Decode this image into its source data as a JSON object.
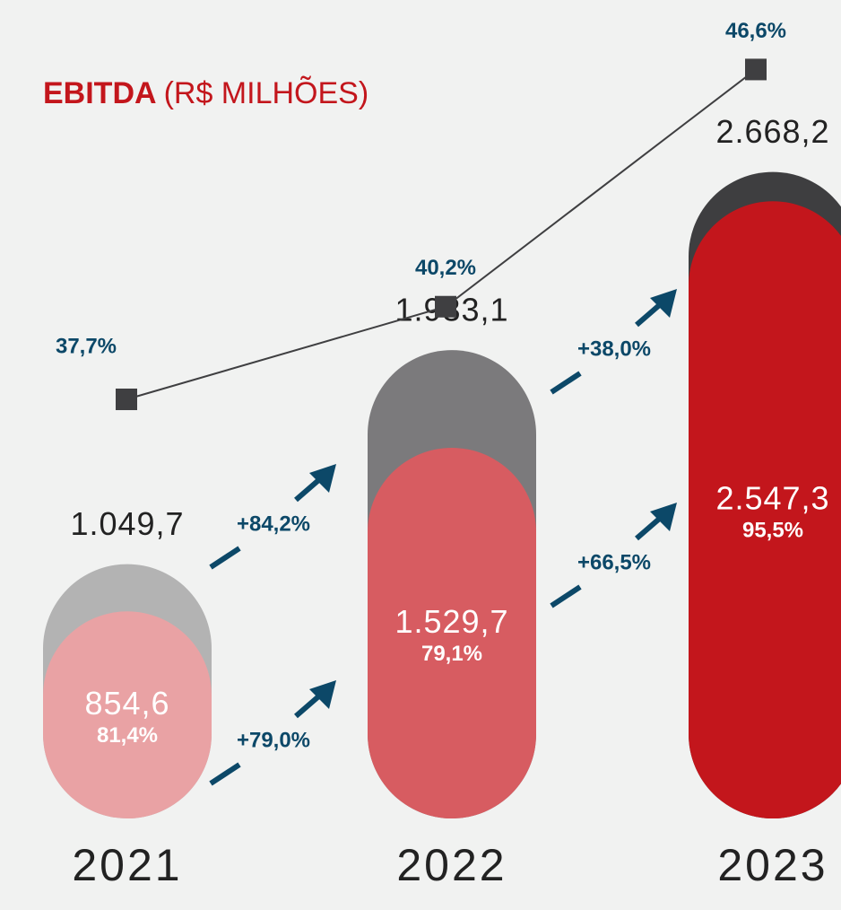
{
  "chart_data": {
    "type": "bar",
    "title": "EBITDA",
    "subtitle": "(R$ MILHÕES)",
    "categories": [
      "2021",
      "2022",
      "2023"
    ],
    "series": [
      {
        "colors": [
          "#b3b3b3",
          "#7b7a7c",
          "#3e3e40"
        ],
        "values": [
          1049.7,
          1933.1,
          2668.2
        ],
        "value_labels": [
          "1.049,7",
          "1.933,1",
          "2.668,2"
        ]
      },
      {
        "colors": [
          "#e9a2a4",
          "#d75c61",
          "#c3161c"
        ],
        "values": [
          854.6,
          1529.7,
          2547.3
        ],
        "value_labels": [
          "854,6",
          "1.529,7",
          "2.547,3"
        ]
      }
    ],
    "share": {
      "values": [
        81.4,
        79.1,
        95.5
      ],
      "value_labels": [
        "81,4%",
        "79,1%",
        "95,5%"
      ]
    },
    "margin": {
      "color": "#3f3f41",
      "values": [
        37.7,
        40.2,
        46.6
      ],
      "value_labels": [
        "37,7%",
        "40,2%",
        "46,6%"
      ]
    },
    "growth": [
      {
        "values": [
          84.2,
          38.0
        ],
        "value_labels": [
          "+84,2%",
          "+38,0%"
        ]
      },
      {
        "values": [
          79.0,
          66.5
        ],
        "value_labels": [
          "+79,0%",
          "+66,5%"
        ]
      }
    ],
    "label_color": "#0c4868",
    "title_color": "#c3161c"
  }
}
